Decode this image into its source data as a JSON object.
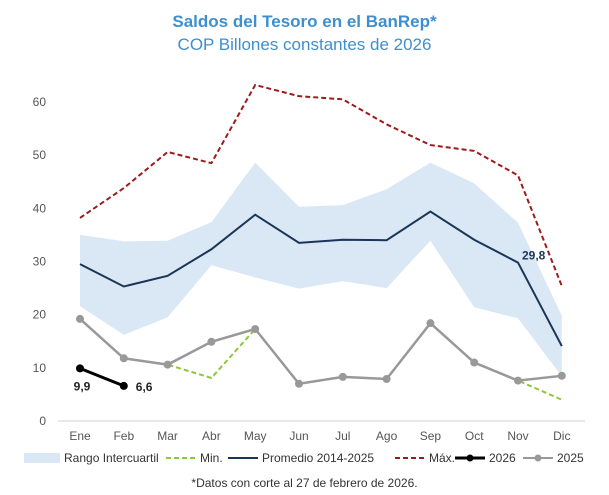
{
  "chart_data": {
    "type": "line",
    "title": "Saldos del Tesoro en el BanRep*",
    "subtitle": "COP Billones constantes de 2026",
    "categories": [
      "Ene",
      "Feb",
      "Mar",
      "Abr",
      "May",
      "Jun",
      "Jul",
      "Ago",
      "Sep",
      "Oct",
      "Nov",
      "Dic"
    ],
    "ylim": [
      0,
      60
    ],
    "yticks": [
      0,
      10,
      20,
      30,
      40,
      50,
      60
    ],
    "grid": false,
    "legend_position": "bottom",
    "band": {
      "name": "Rango Intercuartil",
      "color": "#dae8f6",
      "lower": [
        21.6,
        16.2,
        19.5,
        29.3,
        27.0,
        24.9,
        26.3,
        25.0,
        33.9,
        21.4,
        19.3,
        8.4
      ],
      "upper": [
        35.0,
        33.8,
        33.9,
        37.4,
        48.6,
        40.3,
        40.6,
        43.6,
        48.6,
        44.7,
        37.3,
        19.8
      ]
    },
    "series": [
      {
        "name": "Min.",
        "color": "#8dc63f",
        "style": "dashed",
        "values": [
          19.2,
          11.8,
          10.6,
          8.1,
          17.3,
          7.0,
          8.3,
          7.9,
          18.4,
          11.0,
          7.6,
          4.0
        ]
      },
      {
        "name": "Promedio 2014-2025",
        "color": "#1b3556",
        "style": "solid",
        "values": [
          29.5,
          25.3,
          27.3,
          32.3,
          38.8,
          33.5,
          34.1,
          34.0,
          39.4,
          34.1,
          29.8,
          14.1
        ]
      },
      {
        "name": "Máx.",
        "color": "#9b1c1c",
        "style": "dashed",
        "values": [
          38.2,
          43.8,
          50.6,
          48.5,
          63.2,
          61.1,
          60.5,
          55.8,
          51.9,
          50.8,
          46.2,
          25.4
        ]
      },
      {
        "name": "2026",
        "color": "#000000",
        "style": "solid-markers",
        "values": [
          9.9,
          6.6,
          null,
          null,
          null,
          null,
          null,
          null,
          null,
          null,
          null,
          null
        ]
      },
      {
        "name": "2025",
        "color": "#999999",
        "style": "solid-markers",
        "values": [
          19.2,
          11.8,
          10.6,
          14.9,
          17.3,
          7.0,
          8.3,
          7.9,
          18.4,
          11.0,
          7.6,
          8.5
        ]
      }
    ],
    "data_labels": [
      {
        "series": "2026",
        "category": "Ene",
        "text": "9,9"
      },
      {
        "series": "2026",
        "category": "Feb",
        "text": "6,6"
      },
      {
        "series": "Promedio 2014-2025",
        "category": "Nov",
        "text": "29,8"
      }
    ]
  },
  "footnote": "*Datos con corte al 27 de febrero de 2026."
}
